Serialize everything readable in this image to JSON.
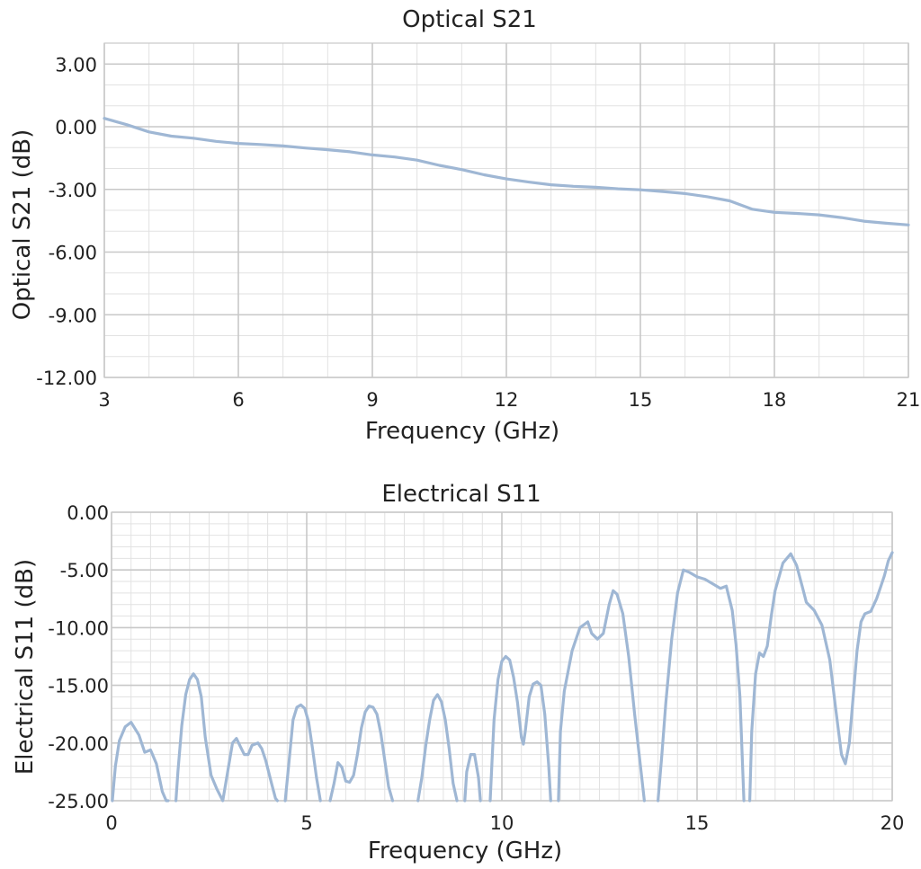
{
  "chart_data": [
    {
      "type": "line",
      "title": "Optical S21",
      "xlabel": "Frequency (GHz)",
      "ylabel": "Optical S21 (dB)",
      "xlim": [
        3,
        21
      ],
      "ylim": [
        -12,
        4
      ],
      "xticks": [
        3,
        6,
        9,
        12,
        15,
        18,
        21
      ],
      "xtick_labels": [
        "3",
        "6",
        "9",
        "12",
        "15",
        "18",
        "21"
      ],
      "yticks": [
        3,
        0,
        -3,
        -6,
        -9,
        -12
      ],
      "ytick_labels": [
        "3.00",
        "0.00",
        "-3.00",
        "-6.00",
        "-9.00",
        "-12.00"
      ],
      "grid": true,
      "color": "#9fb7d4",
      "series": [
        {
          "x": [
            3,
            3.5,
            4,
            4.5,
            5,
            5.5,
            6,
            6.5,
            7,
            7.5,
            8,
            8.5,
            9,
            9.5,
            10,
            10.5,
            11,
            11.5,
            12,
            12.5,
            13,
            13.5,
            14,
            14.5,
            15,
            15.5,
            16,
            16.5,
            17,
            17.5,
            18,
            18.5,
            19,
            19.5,
            20,
            20.5,
            21
          ],
          "y": [
            0.4,
            0.1,
            -0.25,
            -0.45,
            -0.55,
            -0.7,
            -0.8,
            -0.85,
            -0.92,
            -1.02,
            -1.1,
            -1.2,
            -1.35,
            -1.45,
            -1.6,
            -1.85,
            -2.05,
            -2.3,
            -2.5,
            -2.65,
            -2.78,
            -2.85,
            -2.9,
            -2.97,
            -3.02,
            -3.1,
            -3.2,
            -3.35,
            -3.55,
            -3.95,
            -4.1,
            -4.15,
            -4.22,
            -4.35,
            -4.52,
            -4.62,
            -4.7
          ]
        }
      ]
    },
    {
      "type": "line",
      "title": "Electrical S11",
      "xlabel": "Frequency (GHz)",
      "ylabel": "Electrical S11 (dB)",
      "xlim": [
        0,
        20
      ],
      "ylim": [
        -25,
        0
      ],
      "xticks": [
        0,
        5,
        10,
        15,
        20
      ],
      "xtick_labels": [
        "0",
        "5",
        "10",
        "15",
        "20"
      ],
      "yticks": [
        0,
        -5,
        -10,
        -15,
        -20,
        -25
      ],
      "ytick_labels": [
        "0.00",
        "-5.00",
        "-10.00",
        "-15.00",
        "-20.00",
        "-25.00"
      ],
      "grid": true,
      "color": "#9fb7d4",
      "series": [
        {
          "segments": [
            {
              "x": [
                0.02,
                0.1,
                0.2,
                0.35,
                0.5,
                0.7,
                0.85,
                1.0,
                1.15,
                1.3,
                1.4,
                1.45
              ],
              "y": [
                -25,
                -22,
                -19.8,
                -18.6,
                -18.2,
                -19.3,
                -20.8,
                -20.6,
                -21.8,
                -24.2,
                -25,
                -25
              ]
            },
            {
              "x": [
                1.65,
                1.7,
                1.8,
                1.9,
                2.0,
                2.1,
                2.2,
                2.3,
                2.4,
                2.55,
                2.7,
                2.85,
                3.0,
                3.1,
                3.2,
                3.3,
                3.4,
                3.5,
                3.6,
                3.75,
                3.85,
                3.95,
                4.1,
                4.2,
                4.25
              ],
              "y": [
                -25,
                -22.5,
                -18.5,
                -15.8,
                -14.5,
                -14.0,
                -14.5,
                -16.0,
                -19.5,
                -22.8,
                -24.0,
                -25.0,
                -22.0,
                -20.0,
                -19.6,
                -20.3,
                -21.0,
                -21.0,
                -20.2,
                -20.0,
                -20.5,
                -21.5,
                -23.5,
                -24.8,
                -25
              ]
            },
            {
              "x": [
                4.45,
                4.55,
                4.65,
                4.75,
                4.85,
                4.95,
                5.05,
                5.15,
                5.25,
                5.35
              ],
              "y": [
                -25,
                -21.5,
                -18.0,
                -16.9,
                -16.7,
                -17.0,
                -18.2,
                -20.5,
                -23.0,
                -25
              ]
            },
            {
              "x": [
                5.6,
                5.7,
                5.8,
                5.9,
                6.0,
                6.1,
                6.2,
                6.3,
                6.4,
                6.5,
                6.6,
                6.7,
                6.8,
                6.9,
                7.0,
                7.1,
                7.2
              ],
              "y": [
                -25,
                -23.5,
                -21.7,
                -22.1,
                -23.3,
                -23.4,
                -22.8,
                -21.0,
                -18.7,
                -17.3,
                -16.8,
                -16.9,
                -17.5,
                -19.2,
                -21.5,
                -23.8,
                -25
              ]
            },
            {
              "x": [
                7.85,
                7.95,
                8.05,
                8.15,
                8.25,
                8.35,
                8.45,
                8.55,
                8.65,
                8.75,
                8.85
              ],
              "y": [
                -25,
                -23.0,
                -20.2,
                -18.0,
                -16.3,
                -15.8,
                -16.4,
                -18.0,
                -20.5,
                -23.5,
                -25
              ]
            },
            {
              "x": [
                9.05,
                9.1,
                9.2,
                9.3,
                9.4,
                9.45
              ],
              "y": [
                -25,
                -22.5,
                -21.0,
                -21.0,
                -23.0,
                -25
              ]
            },
            {
              "x": [
                9.7,
                9.75,
                9.8,
                9.9,
                10.0,
                10.1,
                10.2,
                10.3,
                10.4,
                10.5,
                10.55,
                10.6,
                10.7,
                10.8,
                10.9,
                11.0,
                11.1,
                11.2,
                11.25
              ],
              "y": [
                -25,
                -21.5,
                -18.0,
                -14.5,
                -12.9,
                -12.5,
                -12.8,
                -14.3,
                -16.5,
                -19.5,
                -20.1,
                -19.0,
                -16.0,
                -14.9,
                -14.7,
                -15.0,
                -17.5,
                -22.0,
                -25
              ]
            },
            {
              "x": [
                11.45,
                11.5,
                11.6,
                11.8,
                12.0,
                12.2,
                12.3,
                12.45,
                12.6,
                12.75,
                12.85,
                12.95,
                13.1,
                13.25,
                13.4,
                13.55,
                13.65
              ],
              "y": [
                -25,
                -19.0,
                -15.5,
                -12.0,
                -10.0,
                -9.5,
                -10.5,
                -11.0,
                -10.5,
                -8.0,
                -6.8,
                -7.1,
                -8.8,
                -12.5,
                -17.5,
                -22.0,
                -25
              ]
            },
            {
              "x": [
                14.0,
                14.1,
                14.2,
                14.35,
                14.5,
                14.65,
                14.8,
                15.0,
                15.2,
                15.4,
                15.6,
                15.75,
                15.9,
                16.0,
                16.1,
                16.2
              ],
              "y": [
                -25,
                -21.0,
                -16.5,
                -11.0,
                -7.0,
                -5.0,
                -5.2,
                -5.6,
                -5.8,
                -6.2,
                -6.6,
                -6.4,
                -8.5,
                -11.5,
                -16.0,
                -25
              ]
            },
            {
              "x": [
                16.35,
                16.4,
                16.5,
                16.6,
                16.7,
                16.8,
                16.9,
                17.0,
                17.2,
                17.4,
                17.55,
                17.7,
                17.8,
                18.0,
                18.2,
                18.4,
                18.55,
                18.7,
                18.8,
                18.9,
                19.0,
                19.1,
                19.2,
                19.3,
                19.45,
                19.6,
                19.7,
                19.8,
                19.9,
                20.0
              ],
              "y": [
                -25,
                -19.0,
                -14.0,
                -12.2,
                -12.5,
                -11.6,
                -9.0,
                -6.8,
                -4.4,
                -3.6,
                -4.6,
                -6.5,
                -7.8,
                -8.5,
                -9.8,
                -12.8,
                -17.0,
                -21.0,
                -21.8,
                -20.0,
                -16.0,
                -12.0,
                -9.5,
                -8.8,
                -8.6,
                -7.5,
                -6.5,
                -5.5,
                -4.2,
                -3.5
              ]
            }
          ]
        }
      ]
    }
  ]
}
